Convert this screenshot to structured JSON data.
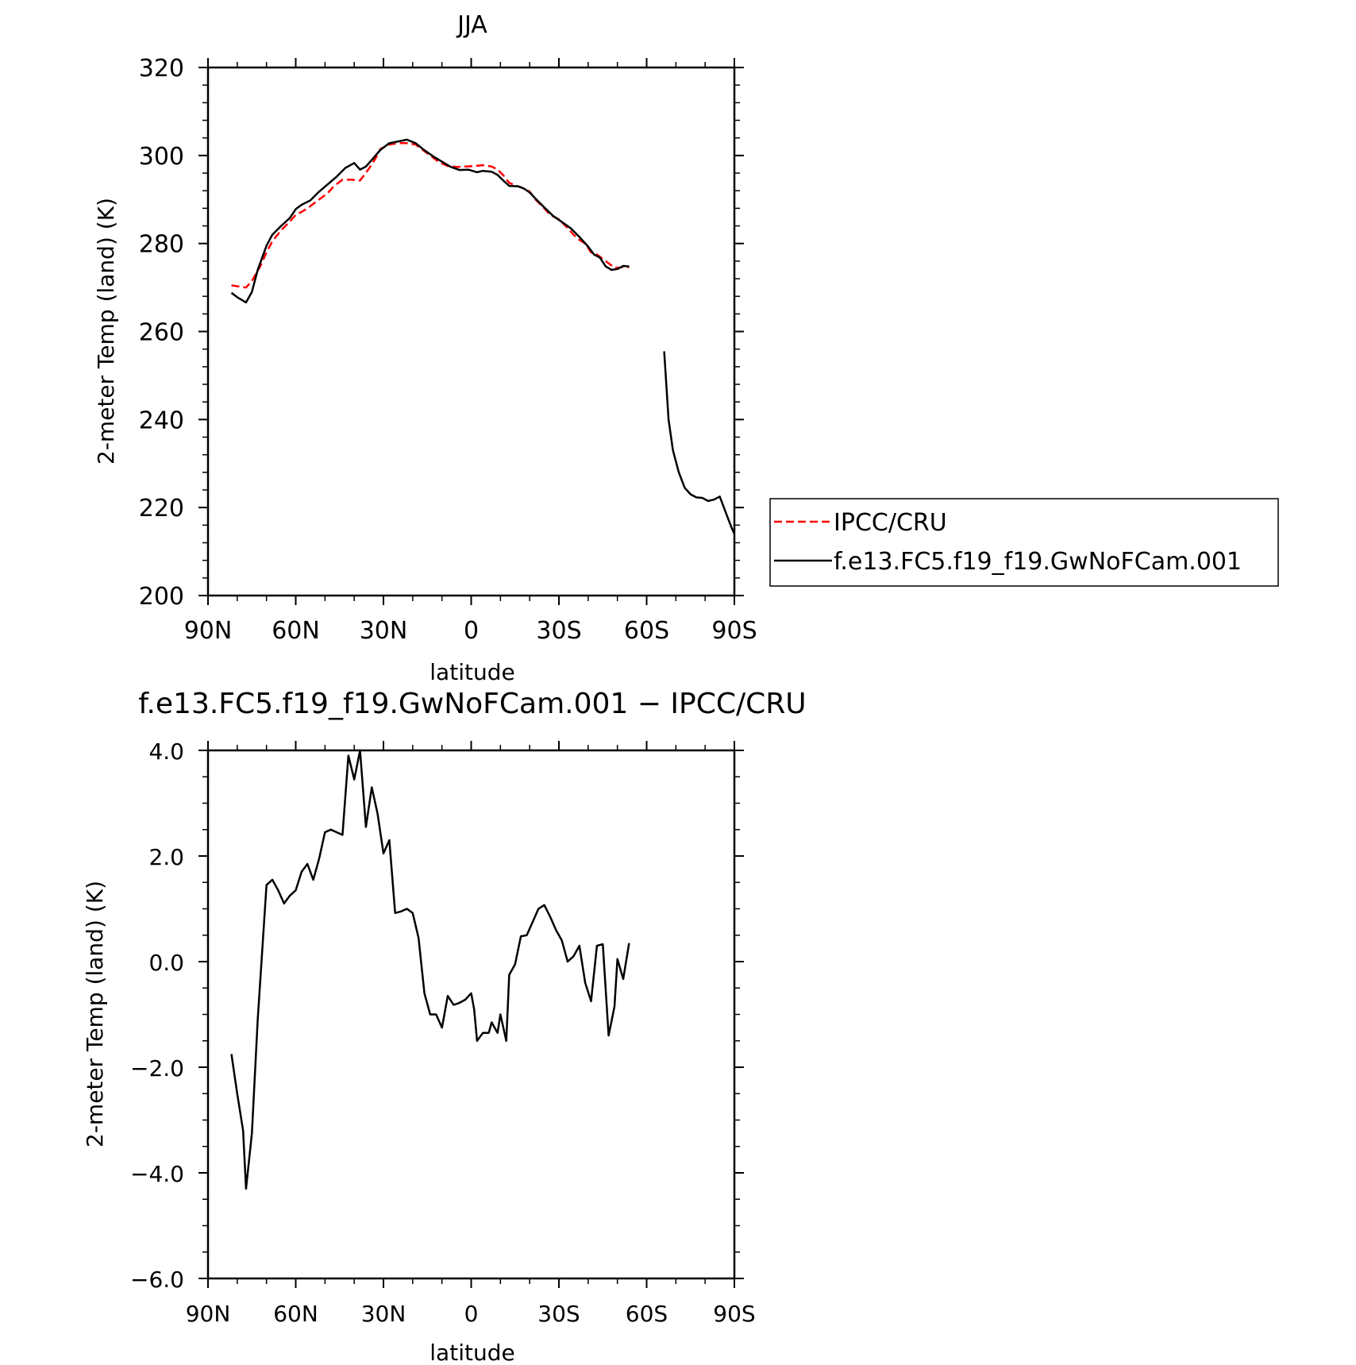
{
  "chart_data": [
    {
      "type": "line",
      "title": "JJA",
      "xlabel": "latitude",
      "ylabel": "2-meter Temp (land) (K)",
      "xlim": [
        90,
        -90
      ],
      "ylim": [
        200,
        320
      ],
      "xticks": [
        90,
        60,
        30,
        0,
        -30,
        -60,
        -90
      ],
      "xtick_labels": [
        "90N",
        "60N",
        "30N",
        "0",
        "30S",
        "60S",
        "90S"
      ],
      "yticks": [
        200,
        220,
        240,
        260,
        280,
        300,
        320
      ],
      "ytick_labels": [
        "200",
        "220",
        "240",
        "260",
        "280",
        "300",
        "320"
      ],
      "legend": {
        "placement": "right",
        "entries": [
          "IPCC/CRU",
          "f.e13.FC5.f19_f19.GwNoFCam.001"
        ]
      },
      "series": [
        {
          "name": "IPCC/CRU",
          "color": "#ff0000",
          "dash": "dashed",
          "segments": [
            [
              [
                82,
                270.5
              ],
              [
                79,
                270.2
              ],
              [
                77,
                270.0
              ],
              [
                75,
                271.5
              ],
              [
                72,
                275
              ],
              [
                70,
                278
              ],
              [
                68,
                280.5
              ],
              [
                65,
                283
              ],
              [
                62,
                285
              ],
              [
                60,
                286.5
              ],
              [
                58,
                287.2
              ],
              [
                56,
                288
              ],
              [
                54,
                289
              ],
              [
                52,
                290
              ],
              [
                49,
                291.5
              ],
              [
                47,
                293
              ],
              [
                44,
                294.5
              ],
              [
                41,
                294.5
              ],
              [
                38,
                294.3
              ],
              [
                35,
                297
              ],
              [
                33,
                299
              ],
              [
                31,
                301.5
              ],
              [
                28,
                302.5
              ],
              [
                25,
                302.8
              ],
              [
                22,
                302.8
              ],
              [
                19,
                302.5
              ],
              [
                17,
                301.5
              ],
              [
                14,
                300
              ],
              [
                11,
                298.5
              ],
              [
                8,
                297.6
              ],
              [
                5,
                297.4
              ],
              [
                2,
                297.5
              ],
              [
                -1,
                297.6
              ],
              [
                -4,
                297.8
              ],
              [
                -7,
                297.5
              ],
              [
                -9,
                296.8
              ],
              [
                -11,
                295.5
              ],
              [
                -13,
                293.8
              ],
              [
                -15,
                293.2
              ],
              [
                -17,
                292.8
              ],
              [
                -20,
                291.8
              ],
              [
                -22,
                290
              ],
              [
                -25,
                288
              ],
              [
                -27,
                286.5
              ],
              [
                -30,
                285.5
              ],
              [
                -33,
                283.5
              ],
              [
                -35,
                282
              ],
              [
                -37,
                280.8
              ],
              [
                -39,
                280
              ],
              [
                -41,
                278
              ],
              [
                -43,
                277.5
              ],
              [
                -45,
                276.5
              ],
              [
                -47,
                275.5
              ],
              [
                -49,
                274.5
              ],
              [
                -51,
                274.5
              ],
              [
                -53,
                275
              ],
              [
                -54,
                274.5
              ]
            ]
          ]
        },
        {
          "name": "f.e13.FC5.f19_f19.GwNoFCam.001",
          "color": "#000000",
          "dash": "solid",
          "segments": [
            [
              [
                82,
                268.8
              ],
              [
                80,
                267.8
              ],
              [
                78,
                267.0
              ],
              [
                77,
                266.6
              ],
              [
                75,
                269
              ],
              [
                73,
                274
              ],
              [
                70,
                279.5
              ],
              [
                68,
                282
              ],
              [
                65,
                284
              ],
              [
                62,
                285.8
              ],
              [
                60,
                287.8
              ],
              [
                58,
                288.8
              ],
              [
                55,
                289.8
              ],
              [
                52,
                291.8
              ],
              [
                49,
                293.5
              ],
              [
                46,
                295.2
              ],
              [
                43,
                297.2
              ],
              [
                40,
                298.3
              ],
              [
                38,
                296.8
              ],
              [
                36,
                297.5
              ],
              [
                34,
                299
              ],
              [
                31,
                301.3
              ],
              [
                28,
                302.8
              ],
              [
                25,
                303.2
              ],
              [
                22,
                303.6
              ],
              [
                19,
                302.8
              ],
              [
                16,
                301.2
              ],
              [
                13,
                299.8
              ],
              [
                10,
                298.6
              ],
              [
                7,
                297.4
              ],
              [
                4,
                296.7
              ],
              [
                1,
                296.8
              ],
              [
                -2,
                296.2
              ],
              [
                -4,
                296.5
              ],
              [
                -7,
                296.3
              ],
              [
                -9,
                295.6
              ],
              [
                -11,
                294.3
              ],
              [
                -13,
                293.1
              ],
              [
                -16,
                293
              ],
              [
                -18,
                292.5
              ],
              [
                -20,
                291.6
              ],
              [
                -22,
                290.2
              ],
              [
                -25,
                288.2
              ],
              [
                -28,
                286.3
              ],
              [
                -31,
                284.9
              ],
              [
                -34,
                283.5
              ],
              [
                -37,
                281.5
              ],
              [
                -40,
                279.3
              ],
              [
                -42,
                277.5
              ],
              [
                -44,
                276.8
              ],
              [
                -46,
                274.8
              ],
              [
                -48,
                274
              ],
              [
                -50,
                274.2
              ],
              [
                -52,
                274.9
              ],
              [
                -54,
                274.8
              ]
            ],
            [
              [
                -66,
                255.5
              ],
              [
                -67.5,
                240
              ],
              [
                -69,
                233
              ],
              [
                -71,
                228
              ],
              [
                -73,
                224.5
              ],
              [
                -75,
                223
              ],
              [
                -77,
                222.3
              ],
              [
                -79,
                222.2
              ],
              [
                -81,
                221.5
              ],
              [
                -83,
                221.8
              ],
              [
                -85,
                222.5
              ],
              [
                -87,
                219
              ],
              [
                -89,
                215.5
              ],
              [
                -90,
                214
              ]
            ]
          ]
        }
      ]
    },
    {
      "type": "line",
      "title": "f.e13.FC5.f19_f19.GwNoFCam.001 − IPCC/CRU",
      "xlabel": "latitude",
      "ylabel": "2-meter Temp (land) (K)",
      "xlim": [
        90,
        -90
      ],
      "ylim": [
        -6.0,
        4.0
      ],
      "xticks": [
        90,
        60,
        30,
        0,
        -30,
        -60,
        -90
      ],
      "xtick_labels": [
        "90N",
        "60N",
        "30N",
        "0",
        "30S",
        "60S",
        "90S"
      ],
      "yticks": [
        -6.0,
        -4.0,
        -2.0,
        0.0,
        2.0,
        4.0
      ],
      "ytick_labels": [
        "−6.0",
        "−4.0",
        "−2.0",
        "0.0",
        "2.0",
        "4.0"
      ],
      "series": [
        {
          "color": "#000000",
          "dash": "solid",
          "segments": [
            [
              [
                82,
                -1.75
              ],
              [
                80,
                -2.5
              ],
              [
                78,
                -3.2
              ],
              [
                77,
                -4.3
              ],
              [
                75,
                -3.25
              ],
              [
                73,
                -1.1
              ],
              [
                70,
                1.45
              ],
              [
                68,
                1.55
              ],
              [
                66,
                1.35
              ],
              [
                64,
                1.1
              ],
              [
                62,
                1.25
              ],
              [
                60,
                1.35
              ],
              [
                58,
                1.7
              ],
              [
                56,
                1.85
              ],
              [
                54,
                1.55
              ],
              [
                52,
                1.95
              ],
              [
                50,
                2.45
              ],
              [
                48,
                2.5
              ],
              [
                46,
                2.45
              ],
              [
                44,
                2.4
              ],
              [
                42,
                3.9
              ],
              [
                40,
                3.45
              ],
              [
                38,
                4.0
              ],
              [
                36,
                2.55
              ],
              [
                34,
                3.3
              ],
              [
                32,
                2.8
              ],
              [
                30,
                2.05
              ],
              [
                28,
                2.3
              ],
              [
                26,
                0.92
              ],
              [
                24,
                0.95
              ],
              [
                22,
                1.0
              ],
              [
                20,
                0.92
              ],
              [
                18,
                0.45
              ],
              [
                16,
                -0.6
              ],
              [
                14,
                -1.0
              ],
              [
                12,
                -1.0
              ],
              [
                10,
                -1.25
              ],
              [
                8,
                -0.65
              ],
              [
                6,
                -0.82
              ],
              [
                4,
                -0.78
              ],
              [
                2,
                -0.72
              ],
              [
                0,
                -0.6
              ],
              [
                -1,
                -0.9
              ],
              [
                -2,
                -1.5
              ],
              [
                -4,
                -1.35
              ],
              [
                -6,
                -1.35
              ],
              [
                -7,
                -1.15
              ],
              [
                -9,
                -1.35
              ],
              [
                -10,
                -1.0
              ],
              [
                -12,
                -1.5
              ],
              [
                -13,
                -0.25
              ],
              [
                -15,
                -0.05
              ],
              [
                -17,
                0.48
              ],
              [
                -19,
                0.5
              ],
              [
                -21,
                0.75
              ],
              [
                -23,
                1.0
              ],
              [
                -25,
                1.07
              ],
              [
                -27,
                0.85
              ],
              [
                -29,
                0.6
              ],
              [
                -31,
                0.4
              ],
              [
                -33,
                0.0
              ],
              [
                -35,
                0.1
              ],
              [
                -37,
                0.3
              ],
              [
                -39,
                -0.4
              ],
              [
                -41,
                -0.75
              ],
              [
                -43,
                0.3
              ],
              [
                -45,
                0.33
              ],
              [
                -47,
                -1.4
              ],
              [
                -49,
                -0.85
              ],
              [
                -50,
                0.05
              ],
              [
                -52,
                -0.33
              ],
              [
                -54,
                0.35
              ]
            ]
          ]
        }
      ]
    }
  ]
}
